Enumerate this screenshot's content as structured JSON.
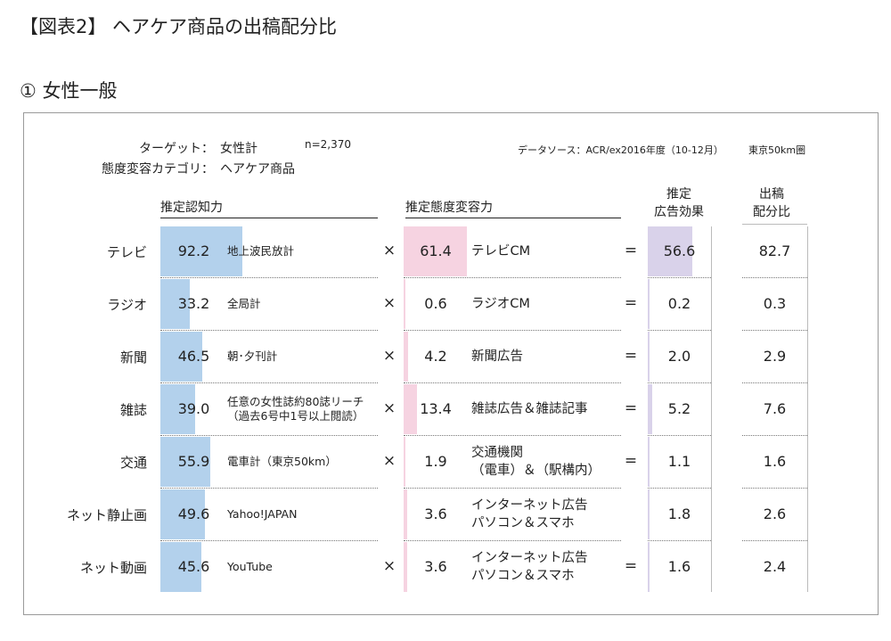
{
  "title": "【図表2】 ヘアケア商品の出稿配分比",
  "section": "① 女性一般",
  "meta": {
    "target_label": "ターゲット：",
    "target_value": "女性計",
    "n": "n=2,370",
    "category_label": "態度変容カテゴリ：",
    "category_value": "ヘアケア商品",
    "source": "データソース：ACR/ex2016年度（10-12月）",
    "area": "東京50km圏"
  },
  "headers": {
    "awareness": "推定認知力",
    "attitude": "推定態度変容力",
    "effect_line1": "推定",
    "effect_line2": "広告効果",
    "ratio_line1": "出稿",
    "ratio_line2": "配分比"
  },
  "operators": {
    "times": "×",
    "equals": "="
  },
  "colors": {
    "awareness_bar": "#b3d1ec",
    "attitude_bar": "#f6d3e1",
    "effect_bar": "#d9d2ea"
  },
  "chart_data": {
    "type": "table",
    "scale_max": 100,
    "columns": [
      "推定認知力",
      "推定態度変容力",
      "推定広告効果",
      "出稿配分比"
    ],
    "rows": [
      {
        "label": "テレビ",
        "awareness": 92.2,
        "awareness_media": "地上波民放計",
        "attitude": 61.4,
        "attitude_media": "テレビCM",
        "effect": 56.6,
        "ratio": 82.7,
        "show_times": true,
        "show_equals": true
      },
      {
        "label": "ラジオ",
        "awareness": 33.2,
        "awareness_media": "全局計",
        "attitude": 0.6,
        "attitude_media": "ラジオCM",
        "effect": 0.2,
        "ratio": 0.3,
        "show_times": true,
        "show_equals": true
      },
      {
        "label": "新聞",
        "awareness": 46.5,
        "awareness_media": "朝･夕刊計",
        "attitude": 4.2,
        "attitude_media": "新聞広告",
        "effect": 2.0,
        "ratio": 2.9,
        "show_times": true,
        "show_equals": true
      },
      {
        "label": "雑誌",
        "awareness": 39.0,
        "awareness_media": "任意の女性誌約80誌リーチ\n（過去6号中1号以上閲読）",
        "attitude": 13.4,
        "attitude_media": "雑誌広告＆雑誌記事",
        "effect": 5.2,
        "ratio": 7.6,
        "show_times": true,
        "show_equals": true
      },
      {
        "label": "交通",
        "awareness": 55.9,
        "awareness_media": "電車計（東京50km）",
        "attitude": 1.9,
        "attitude_media": "交通機関\n（電車）＆（駅構内）",
        "effect": 1.1,
        "ratio": 1.6,
        "show_times": true,
        "show_equals": true
      },
      {
        "label": "ネット静止画",
        "awareness": 49.6,
        "awareness_media": "Yahoo!JAPAN",
        "attitude": 3.6,
        "attitude_media": "インターネット広告\nパソコン＆スマホ",
        "effect": 1.8,
        "ratio": 2.6,
        "show_times": false,
        "show_equals": false
      },
      {
        "label": "ネット動画",
        "awareness": 45.6,
        "awareness_media": "YouTube",
        "attitude": 3.6,
        "attitude_media": "インターネット広告\nパソコン＆スマホ",
        "effect": 1.6,
        "ratio": 2.4,
        "show_times": true,
        "show_equals": true
      }
    ]
  }
}
